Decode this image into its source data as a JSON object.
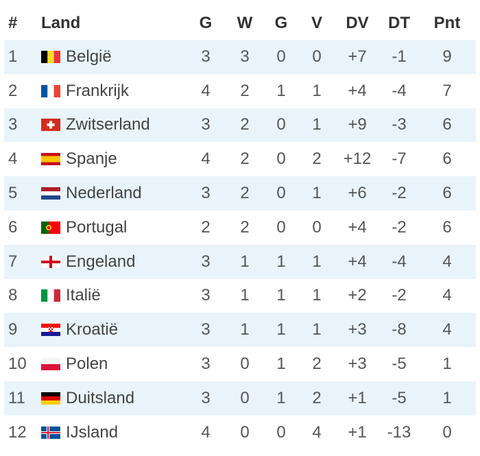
{
  "table": {
    "headers": {
      "rank": "#",
      "country": "Land",
      "played": "G",
      "won": "W",
      "drawn": "G",
      "lost": "V",
      "goals_for": "DV",
      "goals_against": "DT",
      "points": "Pnt"
    },
    "rows": [
      {
        "rank": "1",
        "country": "België",
        "flag": "flag-belgium-icon",
        "played": "3",
        "won": "3",
        "drawn": "0",
        "lost": "0",
        "goals_for": "+7",
        "goals_against": "-1",
        "points": "9"
      },
      {
        "rank": "2",
        "country": "Frankrijk",
        "flag": "flag-france-icon",
        "played": "4",
        "won": "2",
        "drawn": "1",
        "lost": "1",
        "goals_for": "+4",
        "goals_against": "-4",
        "points": "7"
      },
      {
        "rank": "3",
        "country": "Zwitserland",
        "flag": "flag-switzerland-icon",
        "played": "3",
        "won": "2",
        "drawn": "0",
        "lost": "1",
        "goals_for": "+9",
        "goals_against": "-3",
        "points": "6"
      },
      {
        "rank": "4",
        "country": "Spanje",
        "flag": "flag-spain-icon",
        "played": "4",
        "won": "2",
        "drawn": "0",
        "lost": "2",
        "goals_for": "+12",
        "goals_against": "-7",
        "points": "6"
      },
      {
        "rank": "5",
        "country": "Nederland",
        "flag": "flag-netherlands-icon",
        "played": "3",
        "won": "2",
        "drawn": "0",
        "lost": "1",
        "goals_for": "+6",
        "goals_against": "-2",
        "points": "6"
      },
      {
        "rank": "6",
        "country": "Portugal",
        "flag": "flag-portugal-icon",
        "played": "2",
        "won": "2",
        "drawn": "0",
        "lost": "0",
        "goals_for": "+4",
        "goals_against": "-2",
        "points": "6"
      },
      {
        "rank": "7",
        "country": "Engeland",
        "flag": "flag-england-icon",
        "played": "3",
        "won": "1",
        "drawn": "1",
        "lost": "1",
        "goals_for": "+4",
        "goals_against": "-4",
        "points": "4"
      },
      {
        "rank": "8",
        "country": "Italië",
        "flag": "flag-italy-icon",
        "played": "3",
        "won": "1",
        "drawn": "1",
        "lost": "1",
        "goals_for": "+2",
        "goals_against": "-2",
        "points": "4"
      },
      {
        "rank": "9",
        "country": "Kroatië",
        "flag": "flag-croatia-icon",
        "played": "3",
        "won": "1",
        "drawn": "1",
        "lost": "1",
        "goals_for": "+3",
        "goals_against": "-8",
        "points": "4"
      },
      {
        "rank": "10",
        "country": "Polen",
        "flag": "flag-poland-icon",
        "played": "3",
        "won": "0",
        "drawn": "1",
        "lost": "2",
        "goals_for": "+3",
        "goals_against": "-5",
        "points": "1"
      },
      {
        "rank": "11",
        "country": "Duitsland",
        "flag": "flag-germany-icon",
        "played": "3",
        "won": "0",
        "drawn": "1",
        "lost": "2",
        "goals_for": "+1",
        "goals_against": "-5",
        "points": "1"
      },
      {
        "rank": "12",
        "country": "IJsland",
        "flag": "flag-iceland-icon",
        "played": "4",
        "won": "0",
        "drawn": "0",
        "lost": "4",
        "goals_for": "+1",
        "goals_against": "-13",
        "points": "0"
      }
    ]
  },
  "colors": {
    "stripe": "#e8f4fa",
    "header_text": "#333333",
    "cell_text": "#555555"
  }
}
